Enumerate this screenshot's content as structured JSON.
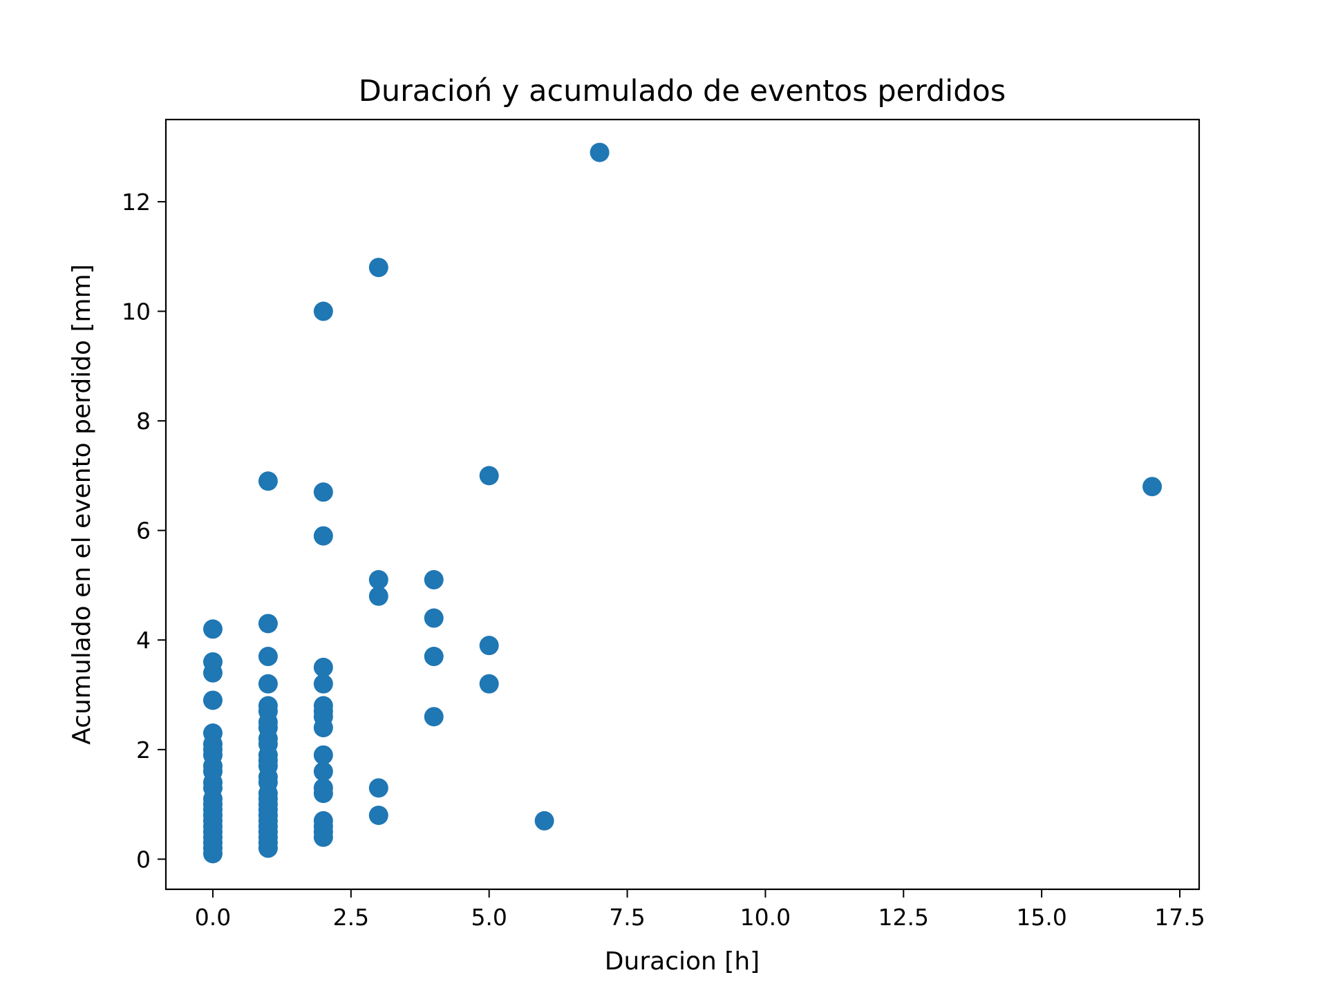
{
  "chart_data": {
    "type": "scatter",
    "title": "Duracioń y acumulado de eventos perdidos",
    "xlabel": "Duracion [h]",
    "ylabel": "Acumulado en el evento perdido [mm]",
    "xlim": [
      -0.85,
      17.85
    ],
    "ylim": [
      -0.55,
      13.5
    ],
    "xticks": [
      0.0,
      2.5,
      5.0,
      7.5,
      10.0,
      12.5,
      15.0,
      17.5
    ],
    "xtick_labels": [
      "0.0",
      "2.5",
      "5.0",
      "7.5",
      "10.0",
      "12.5",
      "15.0",
      "17.5"
    ],
    "yticks": [
      0,
      2,
      4,
      6,
      8,
      10,
      12
    ],
    "ytick_labels": [
      "0",
      "2",
      "4",
      "6",
      "8",
      "10",
      "12"
    ],
    "grid": false,
    "legend": false,
    "marker_color": "#1f77b4",
    "series": [
      {
        "points": [
          [
            0,
            4.2
          ],
          [
            0,
            3.6
          ],
          [
            0,
            3.4
          ],
          [
            0,
            2.9
          ],
          [
            0,
            2.3
          ],
          [
            0,
            2.1
          ],
          [
            0,
            2.0
          ],
          [
            0,
            1.9
          ],
          [
            0,
            1.7
          ],
          [
            0,
            1.6
          ],
          [
            0,
            1.4
          ],
          [
            0,
            1.3
          ],
          [
            0,
            1.1
          ],
          [
            0,
            1.0
          ],
          [
            0,
            0.9
          ],
          [
            0,
            0.8
          ],
          [
            0,
            0.7
          ],
          [
            0,
            0.6
          ],
          [
            0,
            0.5
          ],
          [
            0,
            0.4
          ],
          [
            0,
            0.3
          ],
          [
            0,
            0.2
          ],
          [
            0,
            0.1
          ],
          [
            1,
            6.9
          ],
          [
            1,
            4.3
          ],
          [
            1,
            3.7
          ],
          [
            1,
            3.2
          ],
          [
            1,
            2.8
          ],
          [
            1,
            2.7
          ],
          [
            1,
            2.5
          ],
          [
            1,
            2.4
          ],
          [
            1,
            2.2
          ],
          [
            1,
            2.1
          ],
          [
            1,
            1.9
          ],
          [
            1,
            1.8
          ],
          [
            1,
            1.7
          ],
          [
            1,
            1.5
          ],
          [
            1,
            1.4
          ],
          [
            1,
            1.2
          ],
          [
            1,
            1.1
          ],
          [
            1,
            1.0
          ],
          [
            1,
            0.9
          ],
          [
            1,
            0.8
          ],
          [
            1,
            0.7
          ],
          [
            1,
            0.6
          ],
          [
            1,
            0.5
          ],
          [
            1,
            0.4
          ],
          [
            1,
            0.3
          ],
          [
            1,
            0.2
          ],
          [
            2,
            10.0
          ],
          [
            2,
            6.7
          ],
          [
            2,
            5.9
          ],
          [
            2,
            3.5
          ],
          [
            2,
            3.2
          ],
          [
            2,
            2.8
          ],
          [
            2,
            2.7
          ],
          [
            2,
            2.6
          ],
          [
            2,
            2.4
          ],
          [
            2,
            1.9
          ],
          [
            2,
            1.6
          ],
          [
            2,
            1.3
          ],
          [
            2,
            1.2
          ],
          [
            2,
            0.7
          ],
          [
            2,
            0.6
          ],
          [
            2,
            0.5
          ],
          [
            2,
            0.4
          ],
          [
            3,
            10.8
          ],
          [
            3,
            5.1
          ],
          [
            3,
            4.8
          ],
          [
            3,
            1.3
          ],
          [
            3,
            0.8
          ],
          [
            4,
            5.1
          ],
          [
            4,
            4.4
          ],
          [
            4,
            3.7
          ],
          [
            4,
            2.6
          ],
          [
            5,
            7.0
          ],
          [
            5,
            3.9
          ],
          [
            5,
            3.2
          ],
          [
            6,
            0.7
          ],
          [
            7,
            12.9
          ],
          [
            17,
            6.8
          ]
        ]
      }
    ]
  }
}
